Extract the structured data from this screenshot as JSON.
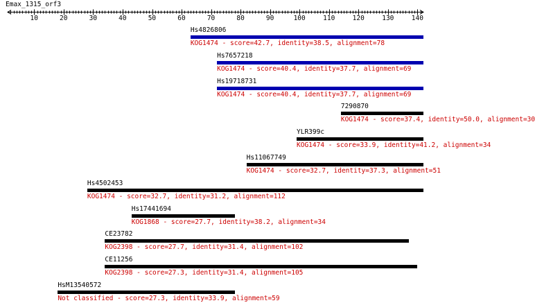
{
  "query": {
    "name": "Emax_1315_orf3",
    "length": 142
  },
  "axis": {
    "ticks": [
      10,
      20,
      30,
      40,
      50,
      60,
      70,
      80,
      90,
      100,
      110,
      120,
      130,
      140
    ],
    "line_color": "#000000"
  },
  "colors": {
    "best_hit": "#0000b0",
    "other_hit": "#000000",
    "detail_text": "#cc0000"
  },
  "hits": [
    {
      "id": "Hs4826806",
      "detail": "KOG1474 - score=42.7, identity=38.5, alignment=78",
      "start": 63,
      "end": 142,
      "best": true
    },
    {
      "id": "Hs7657218",
      "detail": "KOG1474 - score=40.4, identity=37.7, alignment=69",
      "start": 72,
      "end": 142,
      "best": true
    },
    {
      "id": "Hs19718731",
      "detail": "KOG1474 - score=40.4, identity=37.7, alignment=69",
      "start": 72,
      "end": 142,
      "best": true
    },
    {
      "id": "7290870",
      "detail": "KOG1474 - score=37.4, identity=50.0, alignment=30",
      "start": 114,
      "end": 142,
      "best": false
    },
    {
      "id": "YLR399c",
      "detail": "KOG1474 - score=33.9, identity=41.2, alignment=34",
      "start": 99,
      "end": 142,
      "best": false
    },
    {
      "id": "Hs11067749",
      "detail": "KOG1474 - score=32.7, identity=37.3, alignment=51",
      "start": 82,
      "end": 142,
      "best": false
    },
    {
      "id": "Hs4502453",
      "detail": "KOG1474 - score=32.7, identity=31.2, alignment=112",
      "start": 28,
      "end": 142,
      "best": false
    },
    {
      "id": "Hs17441694",
      "detail": "KOG1868 - score=27.7, identity=38.2, alignment=34",
      "start": 43,
      "end": 78,
      "best": false
    },
    {
      "id": "CE23782",
      "detail": "KOG2398 - score=27.7, identity=31.4, alignment=102",
      "start": 34,
      "end": 137,
      "best": false
    },
    {
      "id": "CE11256",
      "detail": "KOG2398 - score=27.3, identity=31.4, alignment=105",
      "start": 34,
      "end": 140,
      "best": false
    },
    {
      "id": "HsM13540572",
      "detail": "Not classified - score=27.3, identity=33.9, alignment=59",
      "start": 18,
      "end": 78,
      "best": false
    }
  ]
}
